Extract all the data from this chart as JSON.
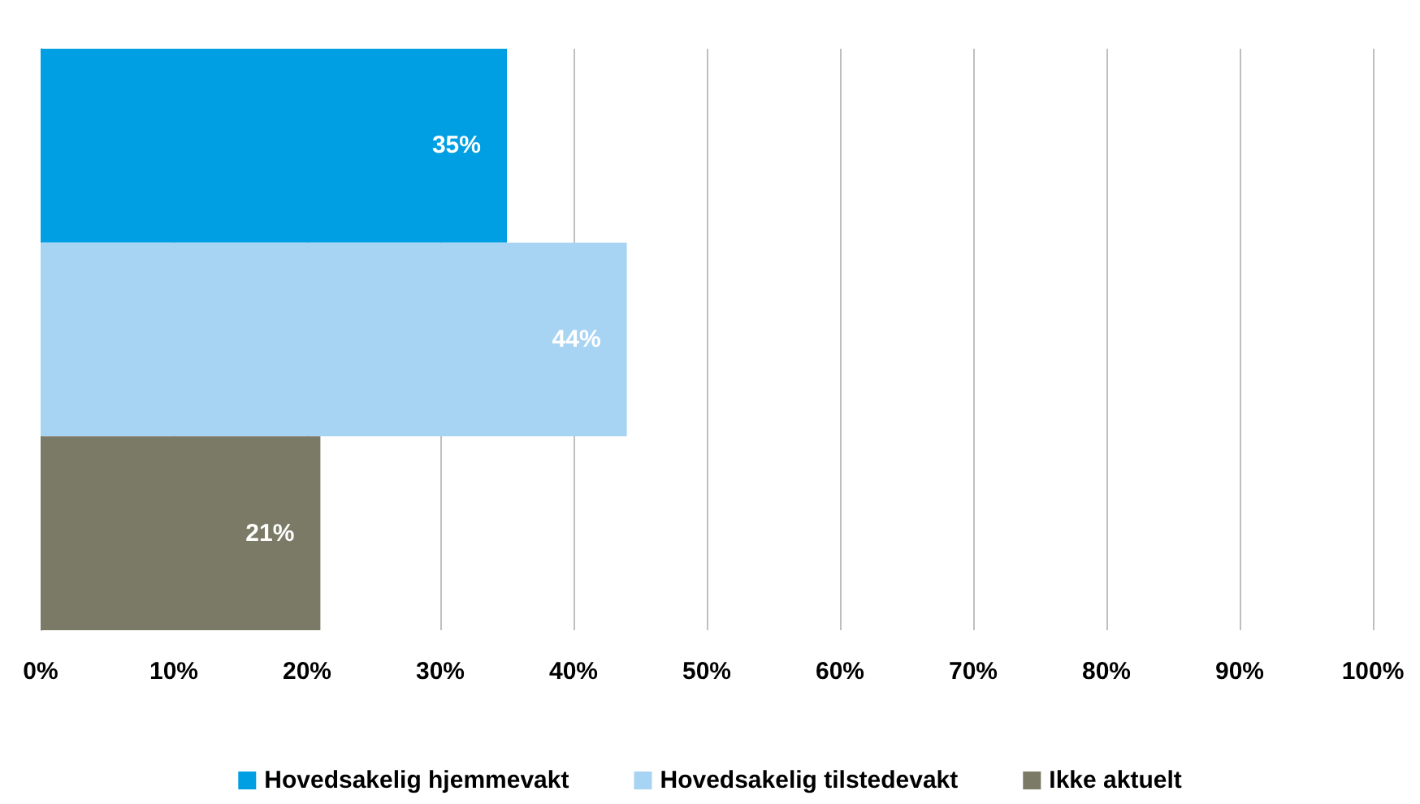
{
  "chart_data": {
    "type": "bar",
    "orientation": "horizontal",
    "categories": [
      null
    ],
    "series": [
      {
        "name": "Hovedsakelig hjemmevakt",
        "color": "#009fe3",
        "values": [
          35
        ],
        "value_labels": [
          "35%"
        ]
      },
      {
        "name": "Hovedsakelig tilstedevakt",
        "color": "#a8d4f4",
        "values": [
          44
        ],
        "value_labels": [
          "44%"
        ]
      },
      {
        "name": "Ikke aktuelt",
        "color": "#7a7a66",
        "values": [
          21
        ],
        "value_labels": [
          "21%"
        ]
      }
    ],
    "xlim": [
      0,
      100
    ],
    "xticks": [
      {
        "value": 0,
        "label": "0%"
      },
      {
        "value": 10,
        "label": "10%"
      },
      {
        "value": 20,
        "label": "20%"
      },
      {
        "value": 30,
        "label": "30%"
      },
      {
        "value": 40,
        "label": "40%"
      },
      {
        "value": 50,
        "label": "50%"
      },
      {
        "value": 60,
        "label": "60%"
      },
      {
        "value": 70,
        "label": "70%"
      },
      {
        "value": 80,
        "label": "80%"
      },
      {
        "value": 90,
        "label": "90%"
      },
      {
        "value": 100,
        "label": "100%"
      }
    ],
    "grid": "x",
    "legend": "bottom"
  }
}
